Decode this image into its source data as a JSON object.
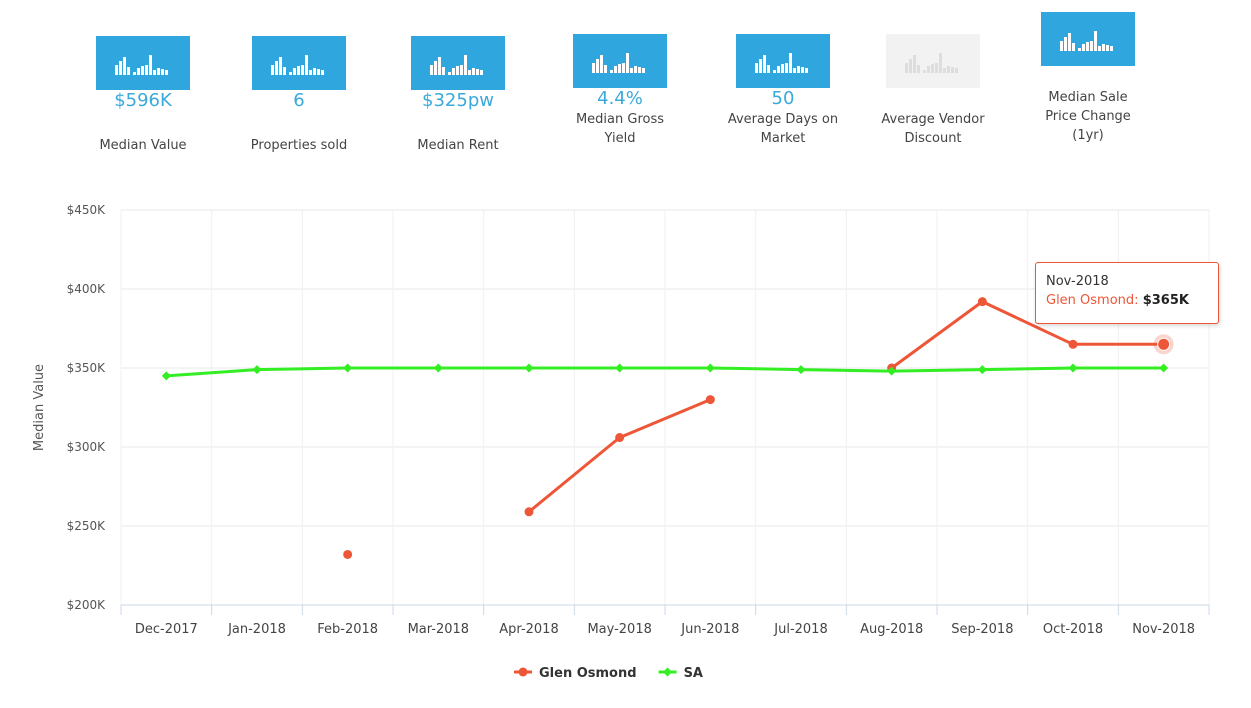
{
  "stats": [
    {
      "value": "$596K",
      "label": "Median Value",
      "enabled": true
    },
    {
      "value": "6",
      "label": "Properties sold",
      "enabled": true
    },
    {
      "value": "$325pw",
      "label": "Median Rent",
      "enabled": true
    },
    {
      "value": "4.4%",
      "label": "Median Gross Yield",
      "enabled": true
    },
    {
      "value": "50",
      "label": "Average Days on Market",
      "enabled": true
    },
    {
      "value": "",
      "label": "Average Vendor Discount",
      "enabled": false
    },
    {
      "value": "",
      "label": "Median Sale Price Change (1yr)",
      "enabled": true
    }
  ],
  "colors": {
    "accent": "#2fa6dd",
    "glen": "#ee5638",
    "sa": "#33ee22"
  },
  "tooltip": {
    "date": "Nov-2018",
    "series": "Glen Osmond",
    "value": "$365K"
  },
  "chart_data": {
    "type": "line",
    "title": "",
    "xlabel": "",
    "ylabel": "Median Value",
    "categories": [
      "Dec-2017",
      "Jan-2018",
      "Feb-2018",
      "Mar-2018",
      "Apr-2018",
      "May-2018",
      "Jun-2018",
      "Jul-2018",
      "Aug-2018",
      "Sep-2018",
      "Oct-2018",
      "Nov-2018"
    ],
    "ylim": [
      200000,
      450000
    ],
    "yticks": [
      200000,
      250000,
      300000,
      350000,
      400000,
      450000
    ],
    "ytick_labels": [
      "$200K",
      "$250K",
      "$300K",
      "$350K",
      "$400K",
      "$450K"
    ],
    "grid": true,
    "legend": "bottom-center",
    "series": [
      {
        "name": "Glen Osmond",
        "color": "#ee5638",
        "marker": "circle",
        "values": [
          null,
          null,
          232000,
          null,
          259000,
          306000,
          330000,
          null,
          350000,
          392000,
          365000,
          365000
        ]
      },
      {
        "name": "SA",
        "color": "#33ee22",
        "marker": "diamond",
        "values": [
          345000,
          349000,
          350000,
          350000,
          350000,
          350000,
          350000,
          349000,
          348000,
          349000,
          350000,
          350000
        ]
      }
    ]
  }
}
